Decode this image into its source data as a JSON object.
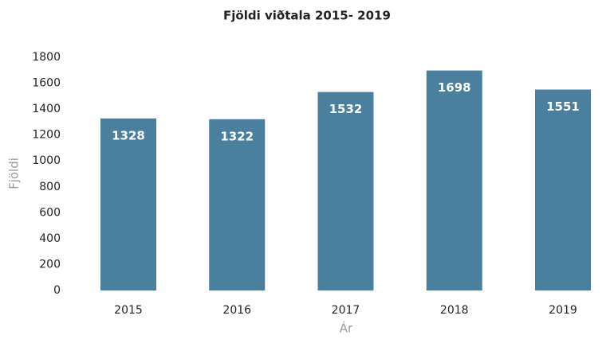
{
  "chart_data": {
    "type": "bar",
    "title": "Fjöldi viðtala 2015- 2019",
    "x_label": "Ár",
    "y_label": "Fjöldi",
    "categories": [
      "2015",
      "2016",
      "2017",
      "2018",
      "2019"
    ],
    "values": [
      1328,
      1322,
      1532,
      1698,
      1551
    ],
    "color": "#4a7f9e",
    "ylim": [
      0,
      1800
    ],
    "yticks": [
      0,
      200,
      400,
      600,
      800,
      1000,
      1200,
      1400,
      1600,
      1800
    ],
    "grid": false
  }
}
